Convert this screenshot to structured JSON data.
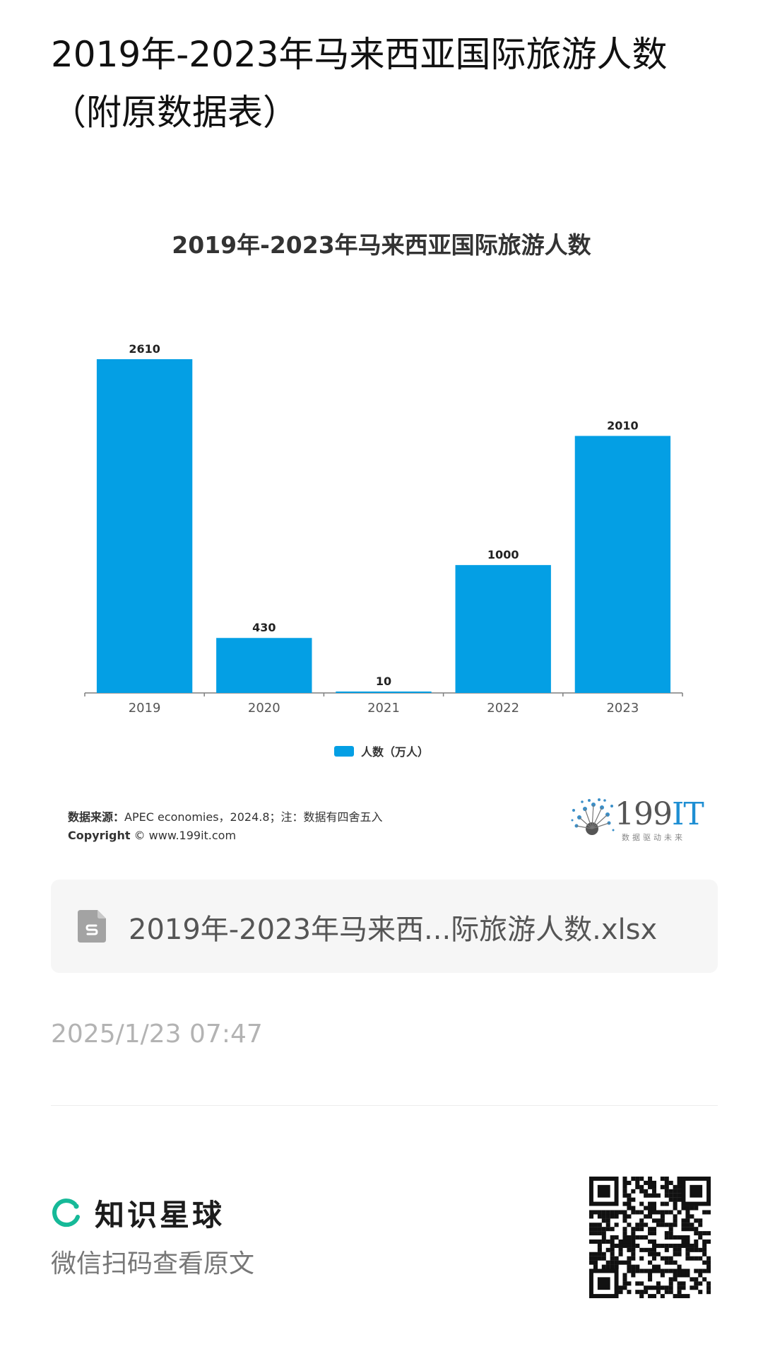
{
  "page": {
    "title": "2019年-2023年马来西亚国际旅游人数（附原数据表）"
  },
  "chart_data": {
    "type": "bar",
    "title": "2019年-2023年马来西亚国际旅游人数",
    "categories": [
      "2019",
      "2020",
      "2021",
      "2022",
      "2023"
    ],
    "series": [
      {
        "name": "人数（万人）",
        "values": [
          2610,
          430,
          10,
          1000,
          2010
        ]
      }
    ],
    "xlabel": "",
    "ylabel": "",
    "ylim": [
      0,
      2610
    ],
    "grid": false,
    "legend_position": "bottom",
    "data_labels": true,
    "bar_color": "#049fe4"
  },
  "source": {
    "label": "数据来源：",
    "text": "APEC economies，2024.8；注：数据有四舍五入",
    "copyright_label": "Copyright",
    "copyright_text": "© www.199it.com"
  },
  "logo": {
    "number": "199",
    "suffix": "IT",
    "tagline": "数据驱动未来"
  },
  "attachment": {
    "icon": "spreadsheet-file-icon",
    "filename": "2019年-2023年马来西...际旅游人数.xlsx"
  },
  "meta": {
    "timestamp": "2025/1/23 07:47"
  },
  "footer": {
    "brand_name": "知识星球",
    "scan_hint": "微信扫码查看原文",
    "brand_color": "#16b998"
  }
}
